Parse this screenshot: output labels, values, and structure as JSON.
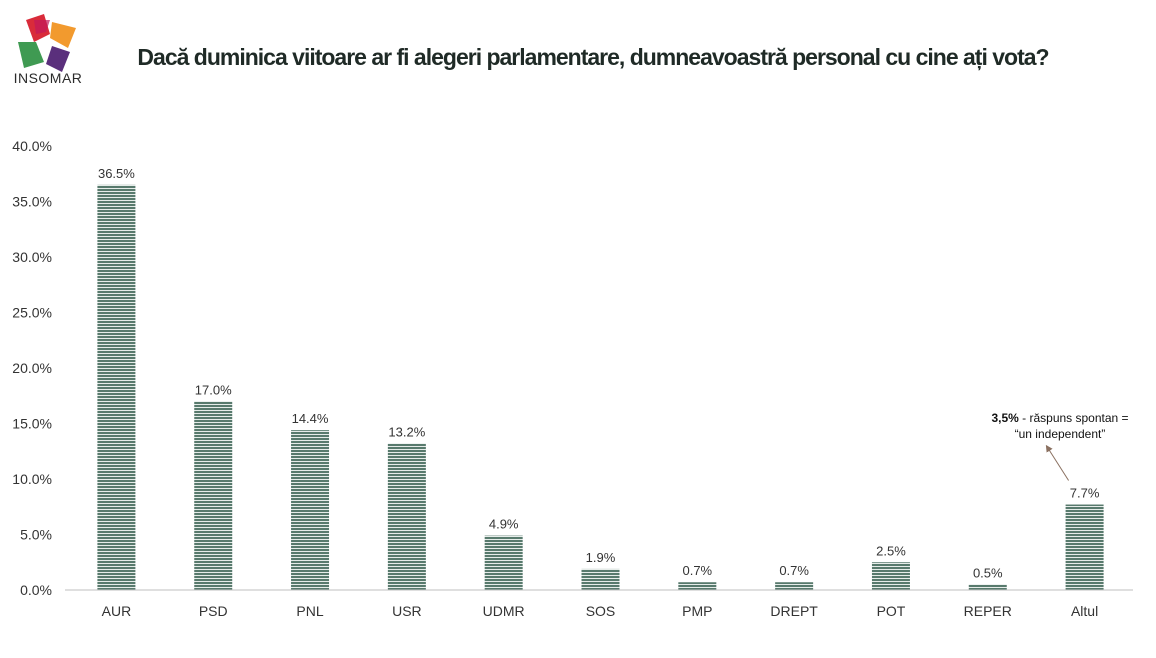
{
  "brand": {
    "name": "INSOMAR"
  },
  "colors": {
    "bar": "#587a6d",
    "bar_stripe": "#e6ece9",
    "axis": "#bfbfbf",
    "arrow": "#8a7060"
  },
  "chart_data": {
    "type": "bar",
    "title": "Dacă duminica viitoare ar fi alegeri parlamentare, dumneavoastră personal cu cine ați vota?",
    "categories": [
      "AUR",
      "PSD",
      "PNL",
      "USR",
      "UDMR",
      "SOS",
      "PMP",
      "DREPT",
      "POT",
      "REPER",
      "Altul"
    ],
    "values": [
      36.5,
      17.0,
      14.4,
      13.2,
      4.9,
      1.9,
      0.7,
      0.7,
      2.5,
      0.5,
      7.7
    ],
    "data_labels": [
      "36.5%",
      "17.0%",
      "14.4%",
      "13.2%",
      "4.9%",
      "1.9%",
      "0.7%",
      "0.7%",
      "2.5%",
      "0.5%",
      "7.7%"
    ],
    "ylim": [
      0,
      40
    ],
    "yticks": [
      "0.0%",
      "5.0%",
      "10.0%",
      "15.0%",
      "20.0%",
      "25.0%",
      "30.0%",
      "35.0%",
      "40.0%"
    ],
    "xlabel": "",
    "ylabel": "",
    "grid": false,
    "annotation": {
      "category": "Altul",
      "bold": "3,5%",
      "line1": " - răspuns spontan =",
      "line2": "“un independent”"
    }
  }
}
